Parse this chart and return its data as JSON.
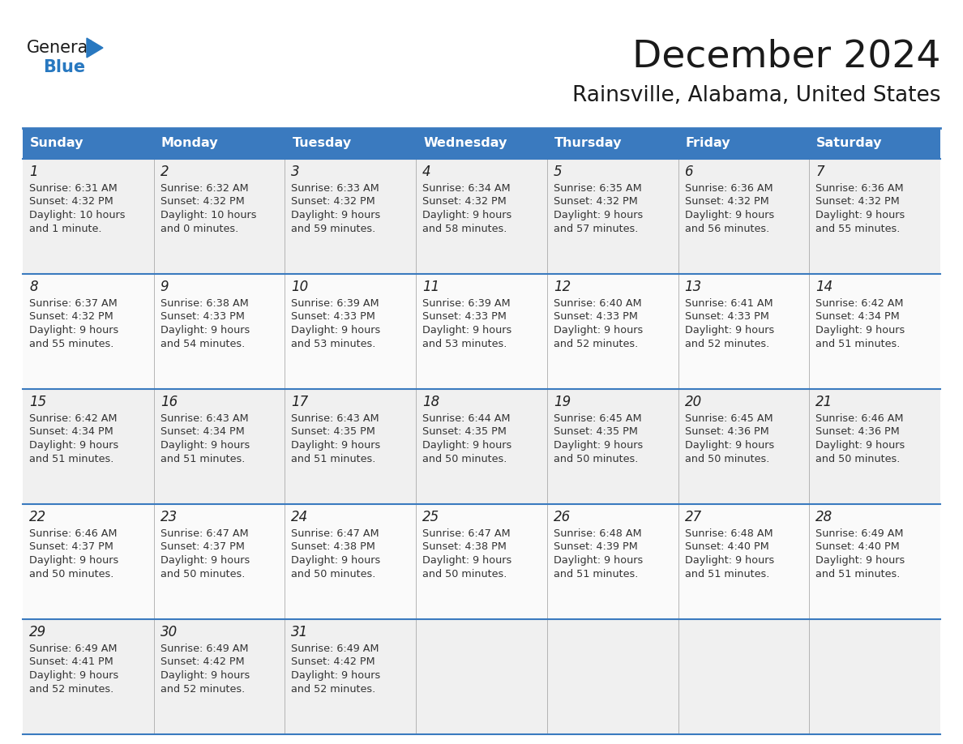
{
  "title": "December 2024",
  "subtitle": "Rainsville, Alabama, United States",
  "header_bg_color": "#3a7abf",
  "header_text_color": "#ffffff",
  "day_names": [
    "Sunday",
    "Monday",
    "Tuesday",
    "Wednesday",
    "Thursday",
    "Friday",
    "Saturday"
  ],
  "title_color": "#1a1a1a",
  "subtitle_color": "#1a1a1a",
  "cell_bg_even": "#f0f0f0",
  "cell_bg_odd": "#fafafa",
  "border_color": "#3a7abf",
  "row_line_color": "#3a7abf",
  "col_line_color": "#aaaaaa",
  "day_num_color": "#222222",
  "text_color": "#333333",
  "logo_text1": "General",
  "logo_text2": "Blue",
  "logo_color1": "#1a1a1a",
  "logo_color2": "#2878c0",
  "logo_triangle_color": "#2878c0",
  "days": [
    {
      "day": 1,
      "col": 0,
      "row": 0,
      "sunrise": "6:31 AM",
      "sunset": "4:32 PM",
      "dl1": "Daylight: 10 hours",
      "dl2": "and 1 minute."
    },
    {
      "day": 2,
      "col": 1,
      "row": 0,
      "sunrise": "6:32 AM",
      "sunset": "4:32 PM",
      "dl1": "Daylight: 10 hours",
      "dl2": "and 0 minutes."
    },
    {
      "day": 3,
      "col": 2,
      "row": 0,
      "sunrise": "6:33 AM",
      "sunset": "4:32 PM",
      "dl1": "Daylight: 9 hours",
      "dl2": "and 59 minutes."
    },
    {
      "day": 4,
      "col": 3,
      "row": 0,
      "sunrise": "6:34 AM",
      "sunset": "4:32 PM",
      "dl1": "Daylight: 9 hours",
      "dl2": "and 58 minutes."
    },
    {
      "day": 5,
      "col": 4,
      "row": 0,
      "sunrise": "6:35 AM",
      "sunset": "4:32 PM",
      "dl1": "Daylight: 9 hours",
      "dl2": "and 57 minutes."
    },
    {
      "day": 6,
      "col": 5,
      "row": 0,
      "sunrise": "6:36 AM",
      "sunset": "4:32 PM",
      "dl1": "Daylight: 9 hours",
      "dl2": "and 56 minutes."
    },
    {
      "day": 7,
      "col": 6,
      "row": 0,
      "sunrise": "6:36 AM",
      "sunset": "4:32 PM",
      "dl1": "Daylight: 9 hours",
      "dl2": "and 55 minutes."
    },
    {
      "day": 8,
      "col": 0,
      "row": 1,
      "sunrise": "6:37 AM",
      "sunset": "4:32 PM",
      "dl1": "Daylight: 9 hours",
      "dl2": "and 55 minutes."
    },
    {
      "day": 9,
      "col": 1,
      "row": 1,
      "sunrise": "6:38 AM",
      "sunset": "4:33 PM",
      "dl1": "Daylight: 9 hours",
      "dl2": "and 54 minutes."
    },
    {
      "day": 10,
      "col": 2,
      "row": 1,
      "sunrise": "6:39 AM",
      "sunset": "4:33 PM",
      "dl1": "Daylight: 9 hours",
      "dl2": "and 53 minutes."
    },
    {
      "day": 11,
      "col": 3,
      "row": 1,
      "sunrise": "6:39 AM",
      "sunset": "4:33 PM",
      "dl1": "Daylight: 9 hours",
      "dl2": "and 53 minutes."
    },
    {
      "day": 12,
      "col": 4,
      "row": 1,
      "sunrise": "6:40 AM",
      "sunset": "4:33 PM",
      "dl1": "Daylight: 9 hours",
      "dl2": "and 52 minutes."
    },
    {
      "day": 13,
      "col": 5,
      "row": 1,
      "sunrise": "6:41 AM",
      "sunset": "4:33 PM",
      "dl1": "Daylight: 9 hours",
      "dl2": "and 52 minutes."
    },
    {
      "day": 14,
      "col": 6,
      "row": 1,
      "sunrise": "6:42 AM",
      "sunset": "4:34 PM",
      "dl1": "Daylight: 9 hours",
      "dl2": "and 51 minutes."
    },
    {
      "day": 15,
      "col": 0,
      "row": 2,
      "sunrise": "6:42 AM",
      "sunset": "4:34 PM",
      "dl1": "Daylight: 9 hours",
      "dl2": "and 51 minutes."
    },
    {
      "day": 16,
      "col": 1,
      "row": 2,
      "sunrise": "6:43 AM",
      "sunset": "4:34 PM",
      "dl1": "Daylight: 9 hours",
      "dl2": "and 51 minutes."
    },
    {
      "day": 17,
      "col": 2,
      "row": 2,
      "sunrise": "6:43 AM",
      "sunset": "4:35 PM",
      "dl1": "Daylight: 9 hours",
      "dl2": "and 51 minutes."
    },
    {
      "day": 18,
      "col": 3,
      "row": 2,
      "sunrise": "6:44 AM",
      "sunset": "4:35 PM",
      "dl1": "Daylight: 9 hours",
      "dl2": "and 50 minutes."
    },
    {
      "day": 19,
      "col": 4,
      "row": 2,
      "sunrise": "6:45 AM",
      "sunset": "4:35 PM",
      "dl1": "Daylight: 9 hours",
      "dl2": "and 50 minutes."
    },
    {
      "day": 20,
      "col": 5,
      "row": 2,
      "sunrise": "6:45 AM",
      "sunset": "4:36 PM",
      "dl1": "Daylight: 9 hours",
      "dl2": "and 50 minutes."
    },
    {
      "day": 21,
      "col": 6,
      "row": 2,
      "sunrise": "6:46 AM",
      "sunset": "4:36 PM",
      "dl1": "Daylight: 9 hours",
      "dl2": "and 50 minutes."
    },
    {
      "day": 22,
      "col": 0,
      "row": 3,
      "sunrise": "6:46 AM",
      "sunset": "4:37 PM",
      "dl1": "Daylight: 9 hours",
      "dl2": "and 50 minutes."
    },
    {
      "day": 23,
      "col": 1,
      "row": 3,
      "sunrise": "6:47 AM",
      "sunset": "4:37 PM",
      "dl1": "Daylight: 9 hours",
      "dl2": "and 50 minutes."
    },
    {
      "day": 24,
      "col": 2,
      "row": 3,
      "sunrise": "6:47 AM",
      "sunset": "4:38 PM",
      "dl1": "Daylight: 9 hours",
      "dl2": "and 50 minutes."
    },
    {
      "day": 25,
      "col": 3,
      "row": 3,
      "sunrise": "6:47 AM",
      "sunset": "4:38 PM",
      "dl1": "Daylight: 9 hours",
      "dl2": "and 50 minutes."
    },
    {
      "day": 26,
      "col": 4,
      "row": 3,
      "sunrise": "6:48 AM",
      "sunset": "4:39 PM",
      "dl1": "Daylight: 9 hours",
      "dl2": "and 51 minutes."
    },
    {
      "day": 27,
      "col": 5,
      "row": 3,
      "sunrise": "6:48 AM",
      "sunset": "4:40 PM",
      "dl1": "Daylight: 9 hours",
      "dl2": "and 51 minutes."
    },
    {
      "day": 28,
      "col": 6,
      "row": 3,
      "sunrise": "6:49 AM",
      "sunset": "4:40 PM",
      "dl1": "Daylight: 9 hours",
      "dl2": "and 51 minutes."
    },
    {
      "day": 29,
      "col": 0,
      "row": 4,
      "sunrise": "6:49 AM",
      "sunset": "4:41 PM",
      "dl1": "Daylight: 9 hours",
      "dl2": "and 52 minutes."
    },
    {
      "day": 30,
      "col": 1,
      "row": 4,
      "sunrise": "6:49 AM",
      "sunset": "4:42 PM",
      "dl1": "Daylight: 9 hours",
      "dl2": "and 52 minutes."
    },
    {
      "day": 31,
      "col": 2,
      "row": 4,
      "sunrise": "6:49 AM",
      "sunset": "4:42 PM",
      "dl1": "Daylight: 9 hours",
      "dl2": "and 52 minutes."
    }
  ]
}
